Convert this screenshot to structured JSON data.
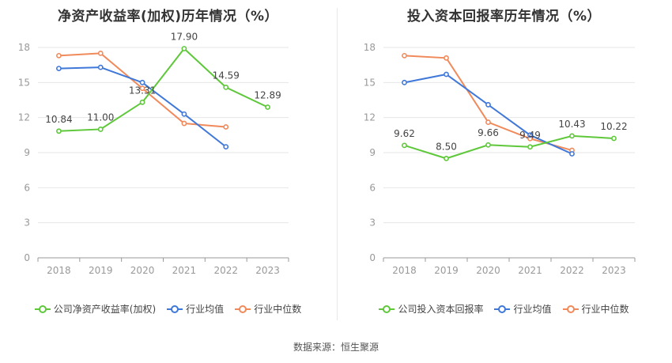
{
  "colors": {
    "company": "#5ec83a",
    "avg": "#3f78d9",
    "median": "#f08a5b",
    "grid": "#e6e6e6",
    "axis": "#999999",
    "label": "#444444"
  },
  "source_text": "数据来源：恒生聚源",
  "chart_data": [
    {
      "type": "line",
      "title": "净资产收益率(加权)历年情况（%）",
      "xlabel": "",
      "ylabel": "",
      "x": [
        "2018",
        "2019",
        "2020",
        "2021",
        "2022",
        "2023"
      ],
      "ylim": [
        0,
        18
      ],
      "yticks": [
        "0",
        "3",
        "6",
        "9",
        "12",
        "15",
        "18"
      ],
      "grid": true,
      "legend_position": "bottom",
      "series": [
        {
          "name": "公司净资产收益率(加权)",
          "color_key": "company",
          "values": [
            10.84,
            11.0,
            13.31,
            17.9,
            14.59,
            12.89
          ],
          "data_labels": [
            "10.84",
            "11.00",
            "13.31",
            "17.90",
            "14.59",
            "12.89"
          ]
        },
        {
          "name": "行业均值",
          "color_key": "avg",
          "values": [
            16.2,
            16.3,
            15.0,
            12.3,
            9.5,
            null
          ]
        },
        {
          "name": "行业中位数",
          "color_key": "median",
          "values": [
            17.3,
            17.5,
            14.5,
            11.5,
            11.2,
            null
          ]
        }
      ]
    },
    {
      "type": "line",
      "title": "投入资本回报率历年情况（%）",
      "xlabel": "",
      "ylabel": "",
      "x": [
        "2018",
        "2019",
        "2020",
        "2021",
        "2022",
        "2023"
      ],
      "ylim": [
        0,
        18
      ],
      "yticks": [
        "0",
        "3",
        "6",
        "9",
        "12",
        "15",
        "18"
      ],
      "grid": true,
      "legend_position": "bottom",
      "series": [
        {
          "name": "公司投入资本回报率",
          "color_key": "company",
          "values": [
            9.62,
            8.5,
            9.66,
            9.49,
            10.43,
            10.22
          ],
          "data_labels": [
            "9.62",
            "8.50",
            "9.66",
            "9.49",
            "10.43",
            "10.22"
          ]
        },
        {
          "name": "行业均值",
          "color_key": "avg",
          "values": [
            15.0,
            15.7,
            13.1,
            10.5,
            8.9,
            null
          ]
        },
        {
          "name": "行业中位数",
          "color_key": "median",
          "values": [
            17.3,
            17.1,
            11.6,
            10.2,
            9.2,
            null
          ]
        }
      ]
    }
  ]
}
